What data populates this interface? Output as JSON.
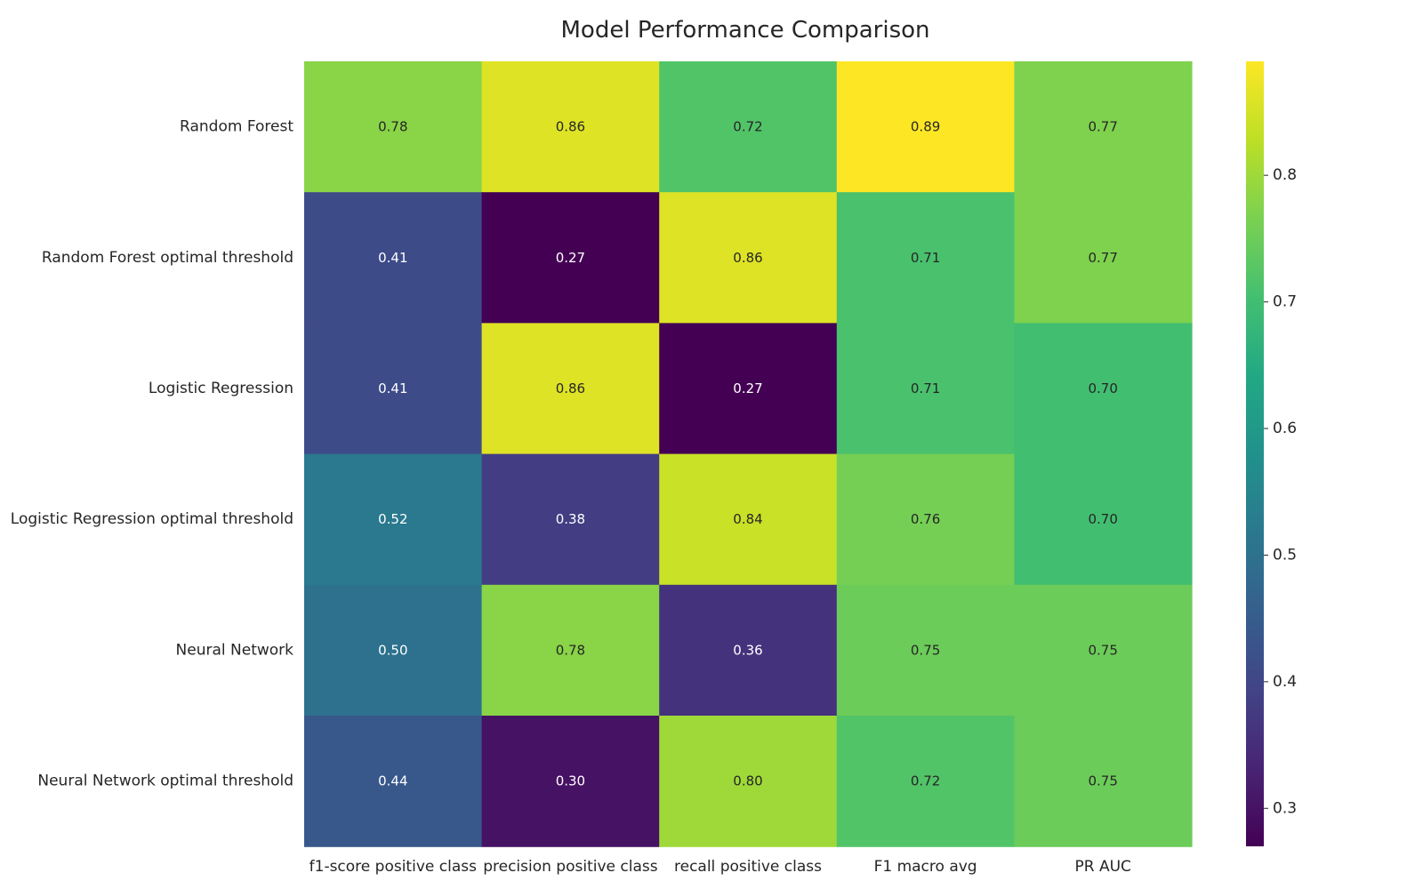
{
  "chart_data": {
    "type": "heatmap",
    "title": "Model Performance Comparison",
    "rows": [
      "Random Forest",
      "Random Forest optimal threshold",
      "Logistic Regression",
      "Logistic Regression optimal threshold",
      "Neural Network",
      "Neural Network optimal threshold"
    ],
    "columns": [
      "f1-score positive class",
      "precision positive class",
      "recall positive class",
      "F1 macro avg",
      "PR AUC"
    ],
    "values": [
      [
        0.78,
        0.86,
        0.72,
        0.89,
        0.77
      ],
      [
        0.41,
        0.27,
        0.86,
        0.71,
        0.77
      ],
      [
        0.41,
        0.86,
        0.27,
        0.71,
        0.7
      ],
      [
        0.52,
        0.38,
        0.84,
        0.76,
        0.7
      ],
      [
        0.5,
        0.78,
        0.36,
        0.75,
        0.75
      ],
      [
        0.44,
        0.3,
        0.8,
        0.72,
        0.75
      ]
    ],
    "value_format": "2 decimals",
    "colormap": "viridis",
    "color_range": [
      0.27,
      0.89
    ],
    "colorbar_ticks": [
      "0.3",
      "0.4",
      "0.5",
      "0.6",
      "0.7",
      "0.8"
    ],
    "colorbar_tick_values": [
      0.3,
      0.4,
      0.5,
      0.6,
      0.7,
      0.8
    ]
  }
}
